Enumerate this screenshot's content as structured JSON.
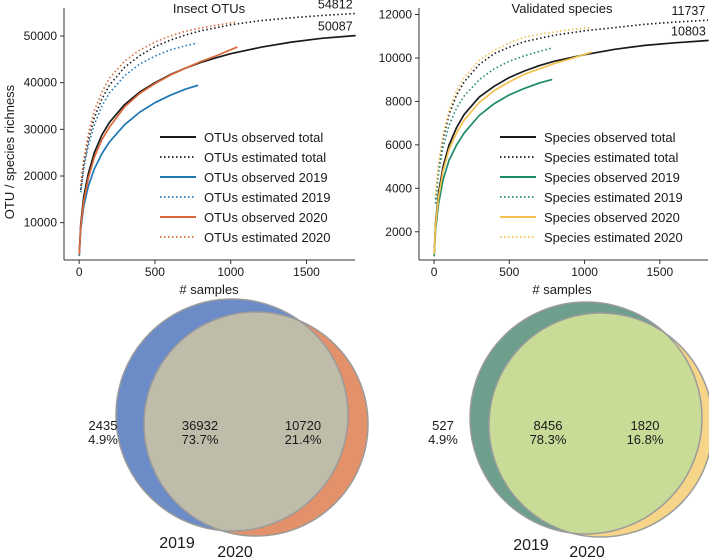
{
  "chart_data": [
    {
      "type": "line",
      "title": "Insect OTUs",
      "xlabel": "# samples",
      "ylabel": "OTU / species richness",
      "xlim": [
        -100,
        1820
      ],
      "ylim": [
        2000,
        56000
      ],
      "xticks": [
        0,
        500,
        1000,
        1500
      ],
      "xtick_labels": [
        "0",
        "500",
        "1000",
        "1500"
      ],
      "yticks": [
        10000,
        20000,
        30000,
        40000,
        50000
      ],
      "ytick_labels": [
        "10000",
        "20000",
        "30000",
        "40000",
        "50000"
      ],
      "series": [
        {
          "name": "OTUs observed total",
          "color": "#1a1a1a",
          "dash": "solid",
          "x": [
            1,
            10,
            30,
            60,
            100,
            150,
            200,
            300,
            400,
            500,
            600,
            700,
            800,
            900,
            1000,
            1200,
            1400,
            1600,
            1820
          ],
          "y": [
            3500,
            9500,
            15500,
            20500,
            25000,
            28800,
            31500,
            35300,
            38000,
            40000,
            41700,
            43100,
            44300,
            45300,
            46200,
            47600,
            48700,
            49500,
            50087
          ]
        },
        {
          "name": "OTUs estimated total",
          "color": "#1a1a1a",
          "dash": "dotted",
          "x": [
            10,
            30,
            60,
            100,
            150,
            200,
            300,
            400,
            500,
            600,
            700,
            800,
            1000,
            1200,
            1400,
            1600,
            1820
          ],
          "y": [
            17000,
            22500,
            27500,
            32500,
            36500,
            39500,
            43300,
            45800,
            47700,
            49100,
            50200,
            51100,
            52400,
            53300,
            53900,
            54400,
            54812
          ]
        },
        {
          "name": "OTUs observed 2019",
          "color": "#1f77b4",
          "dash": "solid",
          "x": [
            1,
            10,
            30,
            60,
            100,
            150,
            200,
            300,
            400,
            500,
            600,
            700,
            780
          ],
          "y": [
            3000,
            8500,
            13500,
            17800,
            21500,
            24800,
            27300,
            31000,
            33700,
            35700,
            37300,
            38600,
            39400
          ]
        },
        {
          "name": "OTUs estimated 2019",
          "color": "#1f77b4",
          "dash": "dotted",
          "x": [
            10,
            30,
            60,
            100,
            150,
            200,
            300,
            400,
            500,
            600,
            700,
            780
          ],
          "y": [
            16500,
            21500,
            26500,
            31000,
            35000,
            37800,
            41500,
            44000,
            45700,
            47000,
            47900,
            48500
          ]
        },
        {
          "name": "OTUs observed 2020",
          "color": "#d9693b",
          "dash": "solid",
          "x": [
            1,
            10,
            30,
            60,
            100,
            150,
            200,
            300,
            400,
            500,
            600,
            700,
            800,
            900,
            1040
          ],
          "y": [
            3300,
            9000,
            14500,
            19500,
            24000,
            27800,
            30500,
            34800,
            37700,
            39800,
            41600,
            43100,
            44500,
            45700,
            47600
          ]
        },
        {
          "name": "OTUs estimated 2020",
          "color": "#d9693b",
          "dash": "dotted",
          "x": [
            10,
            30,
            60,
            100,
            150,
            200,
            300,
            400,
            500,
            600,
            700,
            800,
            900,
            1040
          ],
          "y": [
            18000,
            23500,
            29000,
            34000,
            38000,
            41000,
            44600,
            47000,
            48700,
            50000,
            51000,
            51700,
            52300,
            53000
          ]
        }
      ],
      "annotations": [
        {
          "text": "54812",
          "x": 1690,
          "y": 54812,
          "va": "above"
        },
        {
          "text": "50087",
          "x": 1690,
          "y": 50087,
          "va": "above"
        }
      ],
      "legend": "center-right"
    },
    {
      "type": "line",
      "title": "Validated species",
      "xlabel": "# samples",
      "ylabel": "",
      "xlim": [
        -100,
        1820
      ],
      "ylim": [
        700,
        12300
      ],
      "xticks": [
        0,
        500,
        1000,
        1500
      ],
      "xtick_labels": [
        "0",
        "500",
        "1000",
        "1500"
      ],
      "yticks": [
        2000,
        4000,
        6000,
        8000,
        10000,
        12000
      ],
      "ytick_labels": [
        "2000",
        "4000",
        "6000",
        "8000",
        "10000",
        "12000"
      ],
      "series": [
        {
          "name": "Species observed total",
          "color": "#1a1a1a",
          "dash": "solid",
          "x": [
            1,
            10,
            30,
            60,
            100,
            150,
            200,
            300,
            400,
            500,
            600,
            700,
            800,
            900,
            1000,
            1200,
            1400,
            1600,
            1820
          ],
          "y": [
            1000,
            2400,
            3800,
            5000,
            6000,
            6800,
            7400,
            8200,
            8700,
            9100,
            9400,
            9650,
            9850,
            10000,
            10150,
            10400,
            10580,
            10700,
            10803
          ]
        },
        {
          "name": "Species estimated total",
          "color": "#1a1a1a",
          "dash": "dotted",
          "x": [
            10,
            30,
            60,
            100,
            150,
            200,
            300,
            400,
            500,
            600,
            700,
            800,
            1000,
            1200,
            1400,
            1600,
            1820
          ],
          "y": [
            3500,
            5000,
            6300,
            7400,
            8300,
            8900,
            9700,
            10200,
            10500,
            10750,
            10900,
            11050,
            11250,
            11400,
            11550,
            11650,
            11737
          ]
        },
        {
          "name": "Species observed 2019",
          "color": "#1a8a6a",
          "dash": "solid",
          "x": [
            1,
            10,
            30,
            60,
            100,
            150,
            200,
            300,
            400,
            500,
            600,
            700,
            780
          ],
          "y": [
            900,
            2100,
            3300,
            4400,
            5300,
            6000,
            6550,
            7350,
            7900,
            8300,
            8600,
            8850,
            9000
          ]
        },
        {
          "name": "Species estimated 2019",
          "color": "#1a8a6a",
          "dash": "dotted",
          "x": [
            10,
            30,
            60,
            100,
            150,
            200,
            300,
            400,
            500,
            600,
            700,
            780
          ],
          "y": [
            3300,
            4700,
            5900,
            6900,
            7700,
            8250,
            9000,
            9500,
            9850,
            10100,
            10300,
            10450
          ]
        },
        {
          "name": "Species observed 2020",
          "color": "#f2c14e",
          "dash": "solid",
          "x": [
            1,
            10,
            30,
            60,
            100,
            150,
            200,
            300,
            400,
            500,
            600,
            700,
            800,
            900,
            1040
          ],
          "y": [
            1000,
            2300,
            3600,
            4800,
            5800,
            6550,
            7150,
            7950,
            8500,
            8900,
            9250,
            9500,
            9750,
            9950,
            10250
          ]
        },
        {
          "name": "Species estimated 2020",
          "color": "#f2c14e",
          "dash": "dotted",
          "x": [
            10,
            30,
            60,
            100,
            150,
            200,
            300,
            400,
            500,
            600,
            700,
            800,
            900,
            1040
          ],
          "y": [
            3700,
            5200,
            6500,
            7600,
            8500,
            9100,
            9900,
            10350,
            10700,
            10950,
            11100,
            11200,
            11300,
            11400
          ]
        }
      ],
      "annotations": [
        {
          "text": "11737",
          "x": 1690,
          "y": 11737,
          "va": "above"
        },
        {
          "text": "10803",
          "x": 1690,
          "y": 10803,
          "va": "above"
        }
      ],
      "legend": "center-right"
    },
    {
      "type": "venn",
      "sets": [
        "2019",
        "2020"
      ],
      "regions": [
        {
          "name": "2019 only",
          "count": "2435",
          "percent": "4.9%"
        },
        {
          "name": "both",
          "count": "36932",
          "percent": "73.7%"
        },
        {
          "name": "2020 only",
          "count": "10720",
          "percent": "21.4%"
        }
      ],
      "colors": {
        "left": "#6b8cc6",
        "right": "#e2916a",
        "overlap": "#bfbcaa"
      }
    },
    {
      "type": "venn",
      "sets": [
        "2019",
        "2020"
      ],
      "regions": [
        {
          "name": "2019 only",
          "count": "527",
          "percent": "4.9%"
        },
        {
          "name": "both",
          "count": "8456",
          "percent": "78.3%"
        },
        {
          "name": "2020 only",
          "count": "1820",
          "percent": "16.8%"
        }
      ],
      "colors": {
        "left": "#6e9e8c",
        "right": "#f6d589",
        "overlap": "#c8dc98"
      }
    }
  ]
}
